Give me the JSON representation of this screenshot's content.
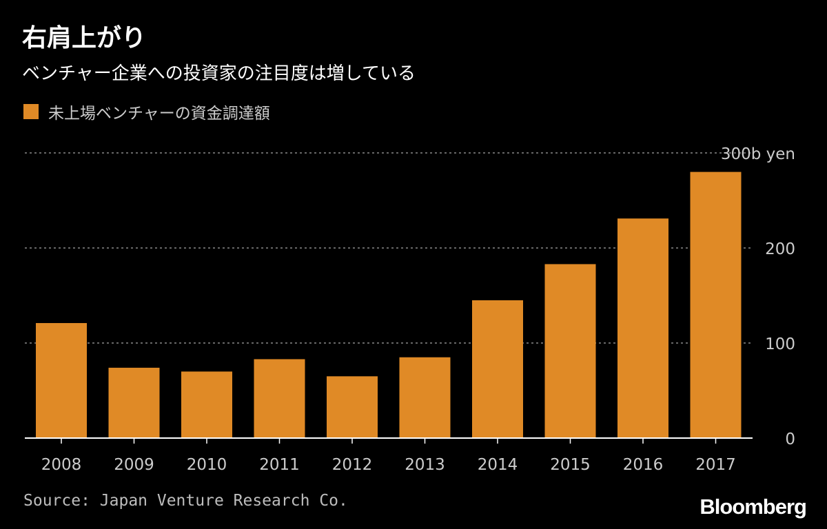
{
  "title": "右肩上がり",
  "subtitle": "ベンチャー企業への投資家の注目度は増している",
  "legend": {
    "label": "未上場ベンチャーの資金調達額"
  },
  "source": "Source: Japan Venture Research Co.",
  "brand": "Bloomberg",
  "colors": {
    "background": "#000000",
    "bar": "#E08A26",
    "grid": "#8a8a8a",
    "tick": "#cccccc"
  },
  "chart_data": {
    "type": "bar",
    "title": "右肩上がり",
    "subtitle": "ベンチャー企業への投資家の注目度は増している",
    "categories": [
      "2008",
      "2009",
      "2010",
      "2011",
      "2012",
      "2013",
      "2014",
      "2015",
      "2016",
      "2017"
    ],
    "series": [
      {
        "name": "未上場ベンチャーの資金調達額",
        "values": [
          121,
          74,
          70,
          83,
          65,
          85,
          145,
          183,
          231,
          280
        ]
      }
    ],
    "ylim": [
      0,
      300
    ],
    "yticks": [
      {
        "value": 0,
        "label": "0"
      },
      {
        "value": 100,
        "label": "100"
      },
      {
        "value": 200,
        "label": "200"
      },
      {
        "value": 300,
        "label": "300b yen"
      }
    ],
    "y_axis_side": "right",
    "grid": true,
    "legend_position": "top-left",
    "xlabel": "",
    "ylabel": ""
  }
}
